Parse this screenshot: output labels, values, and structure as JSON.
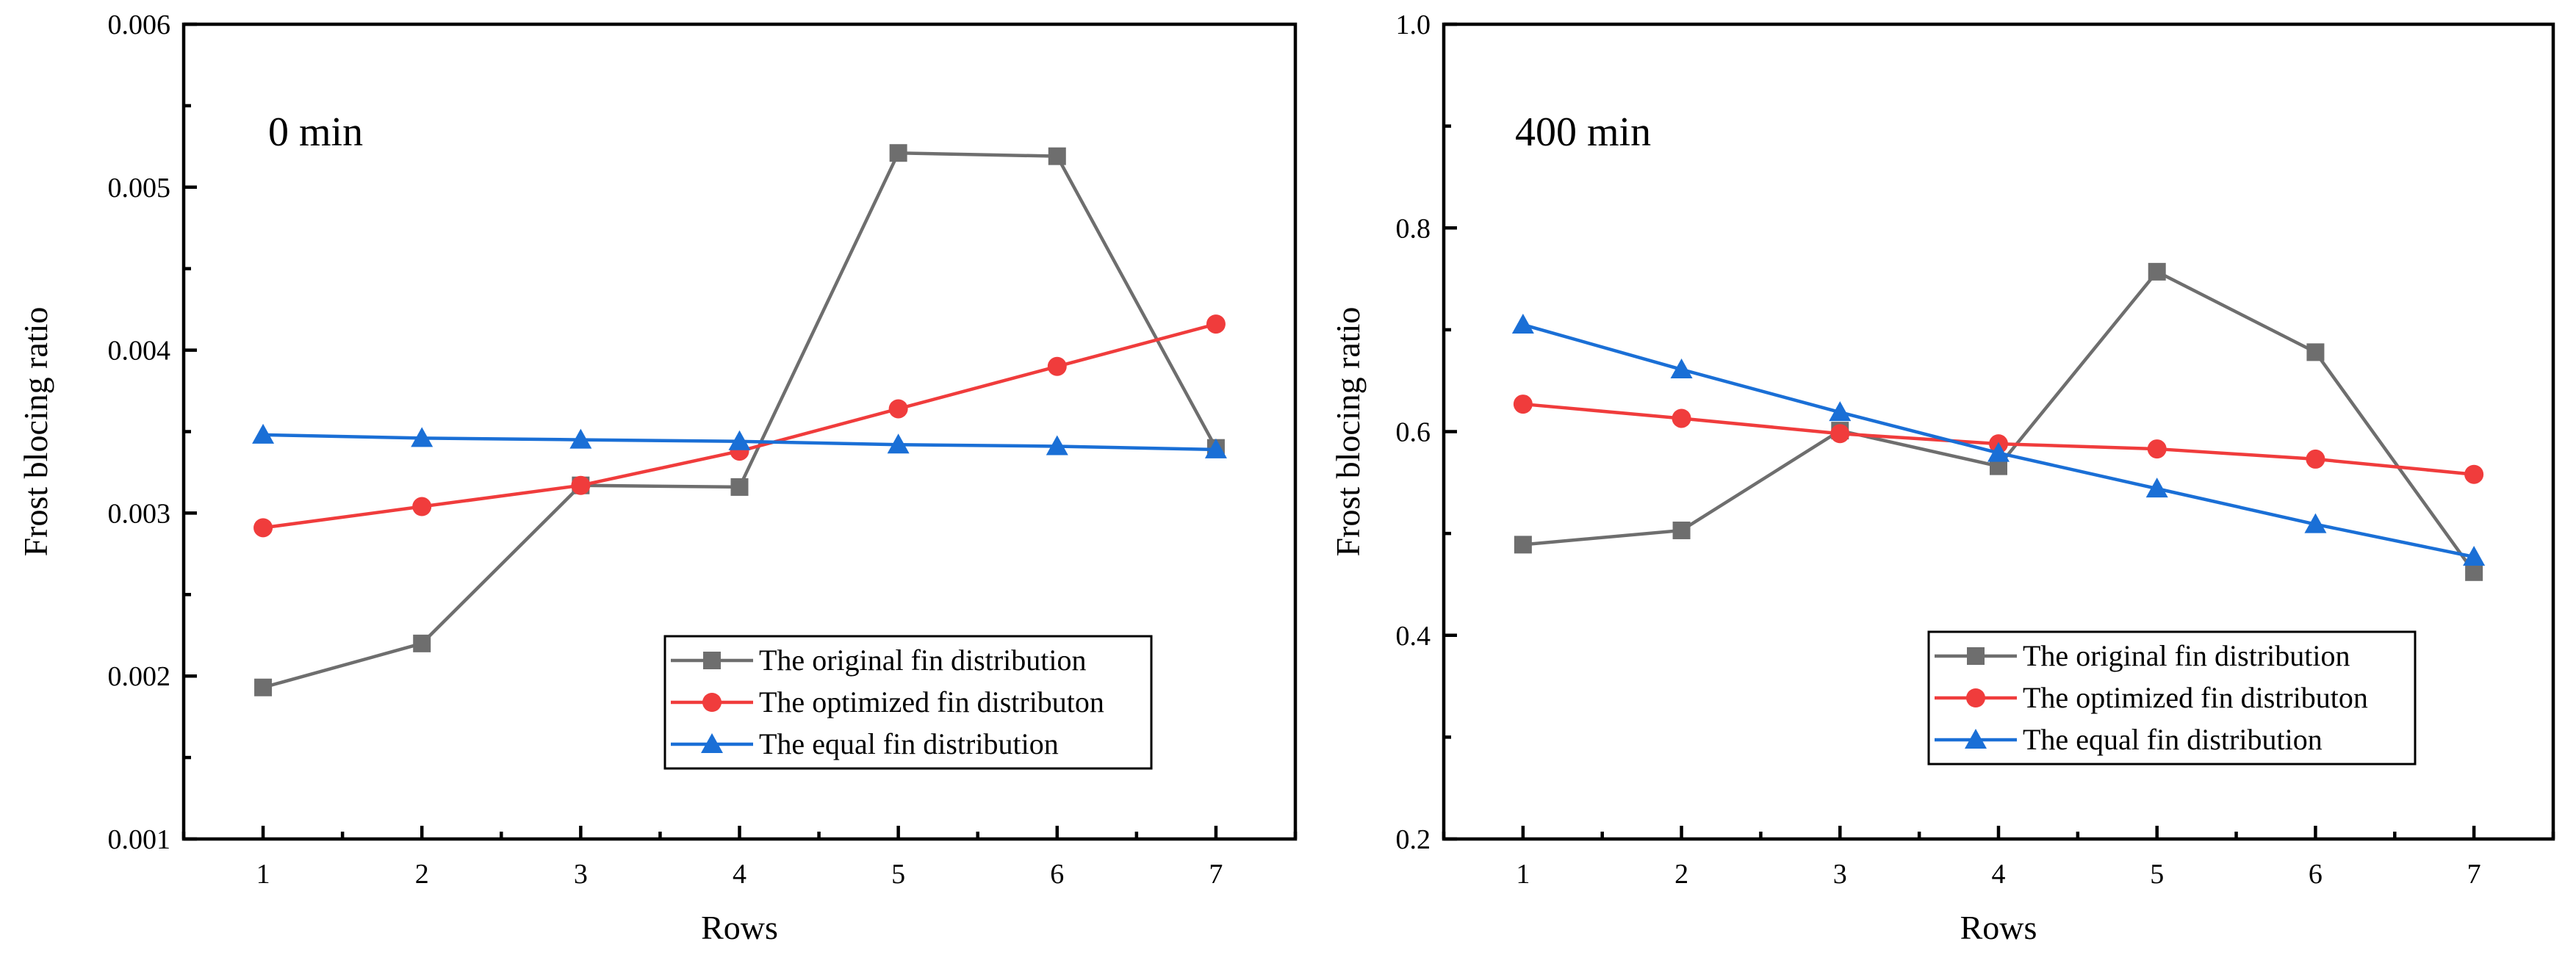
{
  "chart_data": [
    {
      "type": "line",
      "annotation": "0 min",
      "xlabel": "Rows",
      "ylabel": "Frost blocing ratio",
      "x": [
        1,
        2,
        3,
        4,
        5,
        6,
        7
      ],
      "xlim": [
        0.5,
        7.5
      ],
      "ylim": [
        0.001,
        0.006
      ],
      "yticks": [
        0.001,
        0.002,
        0.003,
        0.004,
        0.005,
        0.006
      ],
      "ytick_labels": [
        "0.001",
        "0.002",
        "0.003",
        "0.004",
        "0.005",
        "0.006"
      ],
      "xtick_labels": [
        "1",
        "2",
        "3",
        "4",
        "5",
        "6",
        "7"
      ],
      "legend_position": "bottom-right",
      "series": [
        {
          "name": "The original fin distribution",
          "color": "#6e6e6e",
          "marker": "square",
          "values": [
            0.00193,
            0.0022,
            0.00317,
            0.00316,
            0.00521,
            0.00519,
            0.0034
          ]
        },
        {
          "name": "The optimized fin distributon",
          "color": "#f03c3c",
          "marker": "circle",
          "values": [
            0.00291,
            0.00304,
            0.00317,
            0.00338,
            0.00364,
            0.0039,
            0.00416
          ]
        },
        {
          "name": "The equal fin distribution",
          "color": "#1a6fd6",
          "marker": "triangle",
          "values": [
            0.00348,
            0.00346,
            0.00345,
            0.00344,
            0.00342,
            0.00341,
            0.00339
          ]
        }
      ]
    },
    {
      "type": "line",
      "annotation": "400 min",
      "xlabel": "Rows",
      "ylabel": "Frost blocing ratio",
      "x": [
        1,
        2,
        3,
        4,
        5,
        6,
        7
      ],
      "xlim": [
        0.5,
        7.5
      ],
      "ylim": [
        0.2,
        1.0
      ],
      "yticks": [
        0.2,
        0.4,
        0.6,
        0.8,
        1.0
      ],
      "ytick_labels": [
        "0.2",
        "0.4",
        "0.6",
        "0.8",
        "1.0"
      ],
      "xtick_labels": [
        "1",
        "2",
        "3",
        "4",
        "5",
        "6",
        "7"
      ],
      "legend_position": "bottom-right",
      "series": [
        {
          "name": "The original fin distribution",
          "color": "#6e6e6e",
          "marker": "square",
          "values": [
            0.489,
            0.503,
            0.601,
            0.566,
            0.757,
            0.678,
            0.462
          ]
        },
        {
          "name": "The optimized fin distributon",
          "color": "#f03c3c",
          "marker": "circle",
          "values": [
            0.627,
            0.613,
            0.598,
            0.588,
            0.583,
            0.573,
            0.558
          ]
        },
        {
          "name": "The equal fin distribution",
          "color": "#1a6fd6",
          "marker": "triangle",
          "values": [
            0.705,
            0.661,
            0.619,
            0.579,
            0.544,
            0.509,
            0.477
          ]
        }
      ]
    }
  ]
}
